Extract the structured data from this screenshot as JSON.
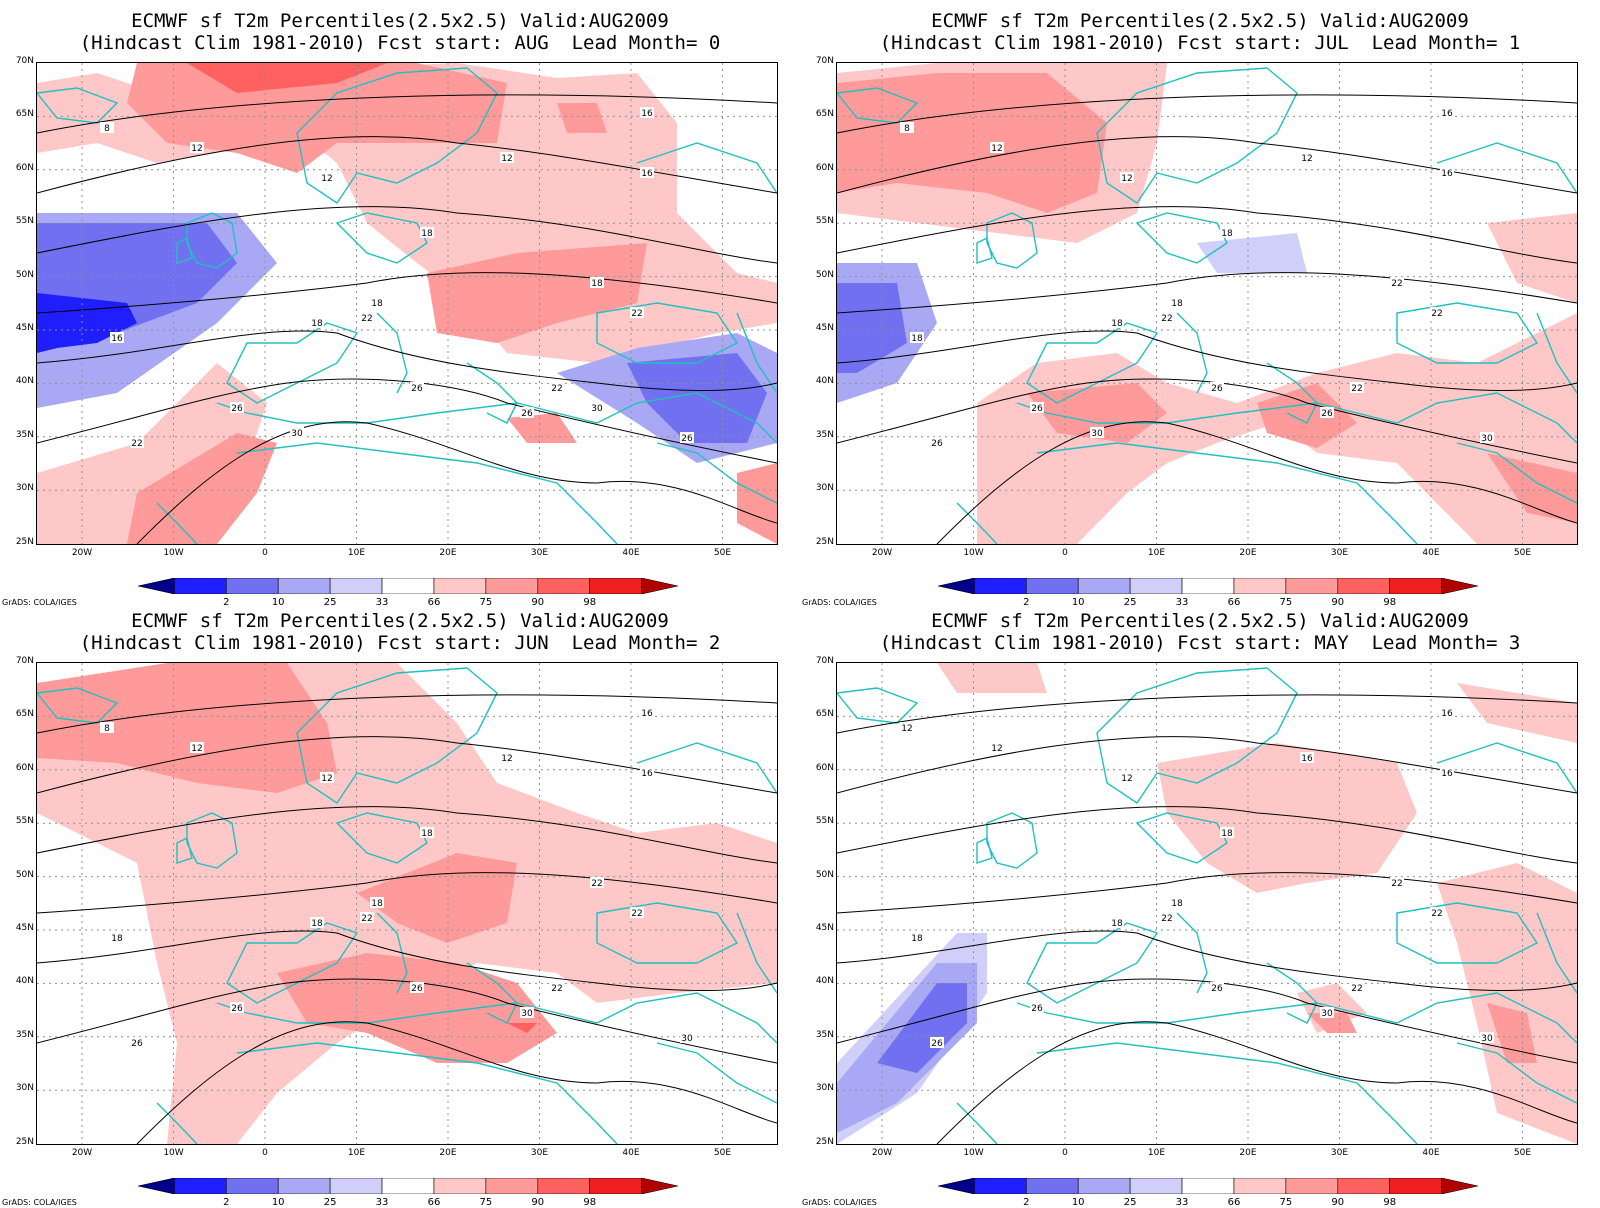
{
  "panels": [
    {
      "title_line1": "ECMWF sf T2m Percentiles(2.5x2.5) Valid:AUG2009",
      "title_line2": "(Hindcast Clim 1981-2010) Fcst start: AUG  Lead Month= 0",
      "contour_labels": [
        "8",
        "12",
        "12",
        "12",
        "16",
        "16",
        "16",
        "18",
        "18",
        "18",
        "18",
        "22",
        "22",
        "22",
        "22",
        "26",
        "26",
        "26",
        "26",
        "30",
        "30"
      ]
    },
    {
      "title_line1": "ECMWF sf T2m Percentiles(2.5x2.5) Valid:AUG2009",
      "title_line2": "(Hindcast Clim 1981-2010) Fcst start: JUL  Lead Month= 1",
      "contour_labels": [
        "8",
        "12",
        "12",
        "12",
        "16",
        "16",
        "18",
        "18",
        "18",
        "18",
        "22",
        "22",
        "22",
        "22",
        "26",
        "26",
        "26",
        "26",
        "30",
        "30"
      ]
    },
    {
      "title_line1": "ECMWF sf T2m Percentiles(2.5x2.5) Valid:AUG2009",
      "title_line2": "(Hindcast Clim 1981-2010) Fcst start: JUN  Lead Month= 2",
      "contour_labels": [
        "8",
        "12",
        "12",
        "12",
        "16",
        "16",
        "18",
        "18",
        "18",
        "18",
        "22",
        "22",
        "22",
        "22",
        "26",
        "26",
        "26",
        "30",
        "30"
      ]
    },
    {
      "title_line1": "ECMWF sf T2m Percentiles(2.5x2.5) Valid:AUG2009",
      "title_line2": "(Hindcast Clim 1981-2010) Fcst start: MAY  Lead Month= 3",
      "contour_labels": [
        "12",
        "12",
        "12",
        "16",
        "16",
        "16",
        "18",
        "18",
        "18",
        "18",
        "22",
        "22",
        "22",
        "22",
        "26",
        "26",
        "26",
        "30",
        "30"
      ]
    }
  ],
  "lat_labels": [
    "70N",
    "65N",
    "60N",
    "55N",
    "50N",
    "45N",
    "40N",
    "35N",
    "30N",
    "25N"
  ],
  "lon_labels": [
    "20W",
    "10W",
    "0",
    "10E",
    "20E",
    "30E",
    "40E",
    "50E"
  ],
  "colorbar": {
    "labels": [
      "2",
      "10",
      "25",
      "33",
      "66",
      "75",
      "90",
      "98"
    ],
    "colors": [
      "#00008b",
      "#1e1eff",
      "#7070f0",
      "#a8a8f5",
      "#cfcffa",
      "#ffffff",
      "#ffc8c8",
      "#ff9a9a",
      "#ff6060",
      "#f02020",
      "#b00000"
    ]
  },
  "credit": "GrADS: COLA/IGES",
  "colors": {
    "coast": "#20c0c0",
    "contour": "#000000",
    "grid": "#909090"
  }
}
